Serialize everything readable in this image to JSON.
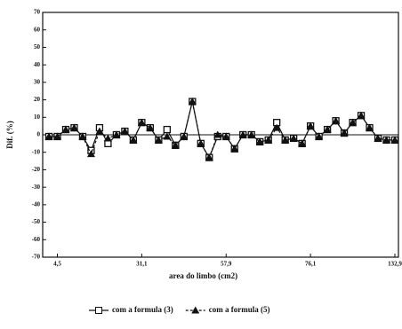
{
  "chart_data": {
    "type": "line",
    "x_label": "area do limbo (cm2)",
    "y_label": "Dif. (%)",
    "categories": [
      null,
      "4,5",
      null,
      null,
      null,
      null,
      null,
      null,
      null,
      null,
      null,
      "31,1",
      null,
      null,
      null,
      null,
      null,
      null,
      null,
      null,
      null,
      "57,9",
      null,
      null,
      null,
      null,
      null,
      null,
      null,
      null,
      null,
      "76,1",
      null,
      null,
      null,
      null,
      null,
      null,
      null,
      null,
      null,
      "132,9"
    ],
    "series": [
      {
        "name": "com a formula (3)",
        "color": "#111111",
        "marker": "square",
        "dashed": false,
        "values": [
          -1,
          -1,
          3,
          4,
          -1,
          -9,
          4,
          -5,
          0,
          2,
          -3,
          7,
          4,
          -3,
          3,
          -6,
          -1,
          19,
          -5,
          -13,
          -1,
          -1,
          -8,
          0,
          0,
          -4,
          -3,
          7,
          -3,
          -2,
          -5,
          5,
          -1,
          3,
          8,
          1,
          7,
          11,
          4,
          -2,
          -3,
          -3
        ]
      },
      {
        "name": "com a formula (5)",
        "color": "#111111",
        "marker": "triangle",
        "dashed": true,
        "values": [
          -1,
          -1,
          3,
          4,
          -1,
          -11,
          2,
          -2,
          0,
          2,
          -3,
          7,
          4,
          -3,
          -1,
          -6,
          -1,
          19,
          -5,
          -13,
          0,
          -1,
          -8,
          0,
          0,
          -4,
          -3,
          4,
          -3,
          -2,
          -5,
          5,
          -1,
          3,
          8,
          1,
          7,
          11,
          4,
          -2,
          -3,
          -3
        ]
      }
    ],
    "ylim": [
      -70,
      70
    ],
    "yticks": [
      -70,
      -60,
      -50,
      -40,
      -30,
      -20,
      -10,
      0,
      10,
      20,
      30,
      40,
      50,
      60,
      70
    ],
    "zero_line": true
  }
}
